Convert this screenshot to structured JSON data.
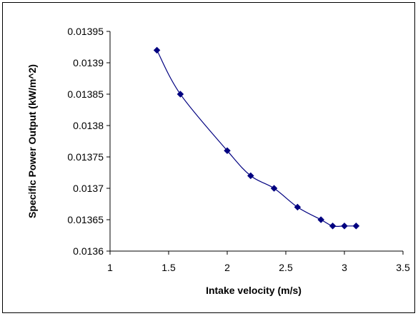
{
  "chart_data": {
    "type": "line",
    "title": "",
    "xlabel": "Intake velocity (m/s)",
    "ylabel": "Specific Power Output (kW/m^2)",
    "xlim": [
      1,
      3.5
    ],
    "ylim": [
      0.0136,
      0.01395
    ],
    "x_ticks": [
      1,
      1.5,
      2,
      2.5,
      3,
      3.5
    ],
    "x_tick_labels": [
      "1",
      "1.5",
      "2",
      "2.5",
      "3",
      "3.5"
    ],
    "y_ticks": [
      0.0136,
      0.01365,
      0.0137,
      0.01375,
      0.0138,
      0.01385,
      0.0139,
      0.01395
    ],
    "y_tick_labels": [
      "0.0136",
      "0.01365",
      "0.0137",
      "0.01375",
      "0.0138",
      "0.01385",
      "0.0139",
      "0.01395"
    ],
    "grid": false,
    "legend": "none",
    "smoothed": true,
    "marker": "diamond",
    "series": [
      {
        "color": "#000080",
        "x": [
          1.4,
          1.6,
          2.0,
          2.2,
          2.4,
          2.6,
          2.8,
          2.9,
          3.0,
          3.1
        ],
        "y": [
          0.01392,
          0.01385,
          0.01376,
          0.01372,
          0.0137,
          0.01367,
          0.01365,
          0.01364,
          0.01364,
          0.01364
        ]
      }
    ]
  }
}
